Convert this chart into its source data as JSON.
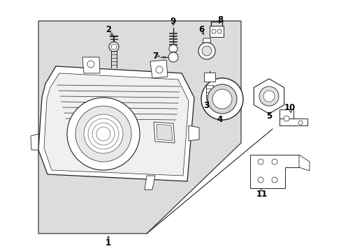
{
  "bg_color": "#ffffff",
  "panel_color": "#e0e0e0",
  "line_color": "#222222",
  "text_color": "#000000",
  "fig_width": 4.89,
  "fig_height": 3.6,
  "dpi": 100,
  "font_size": 8.5
}
